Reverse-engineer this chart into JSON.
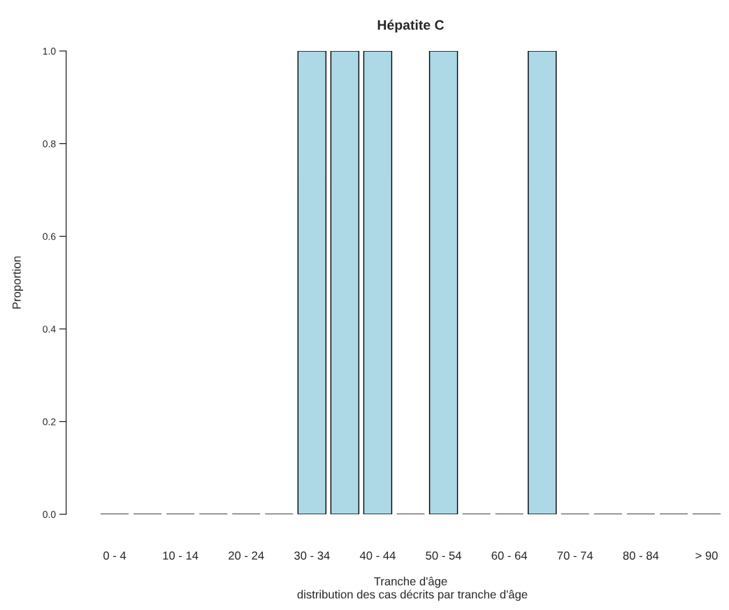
{
  "chart_data": {
    "type": "bar",
    "title": "Hépatite C",
    "xlabel": "Tranche d'âge",
    "ylabel": "Proportion",
    "annotations": [
      "distribution des cas décrits par tranche d'âge"
    ],
    "categories": [
      "0 - 4",
      null,
      "10 - 14",
      null,
      "20 - 24",
      null,
      "30 - 34",
      null,
      "40 - 44",
      null,
      "50 - 54",
      null,
      "60 - 64",
      null,
      "70 - 74",
      null,
      "80 - 84",
      null,
      "> 90"
    ],
    "values": [
      0,
      0,
      0,
      0,
      0,
      0,
      1,
      1,
      1,
      0,
      1,
      0,
      0,
      1,
      0,
      0,
      0,
      0,
      0
    ],
    "colors": [
      "#000000",
      "#000000",
      "#000000",
      "#000000",
      "#000000",
      "#000000",
      "#add8e6",
      "#add8e6",
      "#add8e6",
      "#000000",
      "#add8e6",
      "#000000",
      "#000000",
      "#add8e6",
      "#000000",
      "#000000",
      "#000000",
      "#000000",
      "#000000"
    ],
    "ylim": [
      0,
      1
    ],
    "yticks": [
      {
        "value": 0,
        "label": "0.0"
      },
      0.2,
      0.4,
      0.6,
      0.8,
      {
        "value": 1,
        "label": "1.0"
      }
    ],
    "grid": false,
    "legend": false
  }
}
